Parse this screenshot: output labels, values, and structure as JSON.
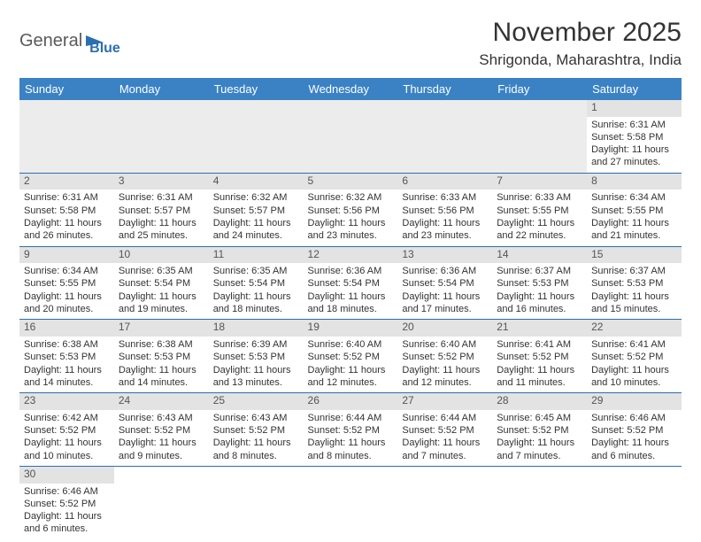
{
  "logo": {
    "part1": "General",
    "part2": "Blue"
  },
  "title": "November 2025",
  "location": "Shrigonda, Maharashtra, India",
  "colors": {
    "header_bg": "#3b82c4",
    "header_text": "#ffffff",
    "row_divider": "#2b6fb0",
    "daynum_bg": "#e3e3e3",
    "text": "#333333",
    "logo_blue": "#2b6fb0"
  },
  "weekdays": [
    "Sunday",
    "Monday",
    "Tuesday",
    "Wednesday",
    "Thursday",
    "Friday",
    "Saturday"
  ],
  "weeks": [
    [
      null,
      null,
      null,
      null,
      null,
      null,
      {
        "n": "1",
        "sr": "Sunrise: 6:31 AM",
        "ss": "Sunset: 5:58 PM",
        "dl": "Daylight: 11 hours and 27 minutes."
      }
    ],
    [
      {
        "n": "2",
        "sr": "Sunrise: 6:31 AM",
        "ss": "Sunset: 5:58 PM",
        "dl": "Daylight: 11 hours and 26 minutes."
      },
      {
        "n": "3",
        "sr": "Sunrise: 6:31 AM",
        "ss": "Sunset: 5:57 PM",
        "dl": "Daylight: 11 hours and 25 minutes."
      },
      {
        "n": "4",
        "sr": "Sunrise: 6:32 AM",
        "ss": "Sunset: 5:57 PM",
        "dl": "Daylight: 11 hours and 24 minutes."
      },
      {
        "n": "5",
        "sr": "Sunrise: 6:32 AM",
        "ss": "Sunset: 5:56 PM",
        "dl": "Daylight: 11 hours and 23 minutes."
      },
      {
        "n": "6",
        "sr": "Sunrise: 6:33 AM",
        "ss": "Sunset: 5:56 PM",
        "dl": "Daylight: 11 hours and 23 minutes."
      },
      {
        "n": "7",
        "sr": "Sunrise: 6:33 AM",
        "ss": "Sunset: 5:55 PM",
        "dl": "Daylight: 11 hours and 22 minutes."
      },
      {
        "n": "8",
        "sr": "Sunrise: 6:34 AM",
        "ss": "Sunset: 5:55 PM",
        "dl": "Daylight: 11 hours and 21 minutes."
      }
    ],
    [
      {
        "n": "9",
        "sr": "Sunrise: 6:34 AM",
        "ss": "Sunset: 5:55 PM",
        "dl": "Daylight: 11 hours and 20 minutes."
      },
      {
        "n": "10",
        "sr": "Sunrise: 6:35 AM",
        "ss": "Sunset: 5:54 PM",
        "dl": "Daylight: 11 hours and 19 minutes."
      },
      {
        "n": "11",
        "sr": "Sunrise: 6:35 AM",
        "ss": "Sunset: 5:54 PM",
        "dl": "Daylight: 11 hours and 18 minutes."
      },
      {
        "n": "12",
        "sr": "Sunrise: 6:36 AM",
        "ss": "Sunset: 5:54 PM",
        "dl": "Daylight: 11 hours and 18 minutes."
      },
      {
        "n": "13",
        "sr": "Sunrise: 6:36 AM",
        "ss": "Sunset: 5:54 PM",
        "dl": "Daylight: 11 hours and 17 minutes."
      },
      {
        "n": "14",
        "sr": "Sunrise: 6:37 AM",
        "ss": "Sunset: 5:53 PM",
        "dl": "Daylight: 11 hours and 16 minutes."
      },
      {
        "n": "15",
        "sr": "Sunrise: 6:37 AM",
        "ss": "Sunset: 5:53 PM",
        "dl": "Daylight: 11 hours and 15 minutes."
      }
    ],
    [
      {
        "n": "16",
        "sr": "Sunrise: 6:38 AM",
        "ss": "Sunset: 5:53 PM",
        "dl": "Daylight: 11 hours and 14 minutes."
      },
      {
        "n": "17",
        "sr": "Sunrise: 6:38 AM",
        "ss": "Sunset: 5:53 PM",
        "dl": "Daylight: 11 hours and 14 minutes."
      },
      {
        "n": "18",
        "sr": "Sunrise: 6:39 AM",
        "ss": "Sunset: 5:53 PM",
        "dl": "Daylight: 11 hours and 13 minutes."
      },
      {
        "n": "19",
        "sr": "Sunrise: 6:40 AM",
        "ss": "Sunset: 5:52 PM",
        "dl": "Daylight: 11 hours and 12 minutes."
      },
      {
        "n": "20",
        "sr": "Sunrise: 6:40 AM",
        "ss": "Sunset: 5:52 PM",
        "dl": "Daylight: 11 hours and 12 minutes."
      },
      {
        "n": "21",
        "sr": "Sunrise: 6:41 AM",
        "ss": "Sunset: 5:52 PM",
        "dl": "Daylight: 11 hours and 11 minutes."
      },
      {
        "n": "22",
        "sr": "Sunrise: 6:41 AM",
        "ss": "Sunset: 5:52 PM",
        "dl": "Daylight: 11 hours and 10 minutes."
      }
    ],
    [
      {
        "n": "23",
        "sr": "Sunrise: 6:42 AM",
        "ss": "Sunset: 5:52 PM",
        "dl": "Daylight: 11 hours and 10 minutes."
      },
      {
        "n": "24",
        "sr": "Sunrise: 6:43 AM",
        "ss": "Sunset: 5:52 PM",
        "dl": "Daylight: 11 hours and 9 minutes."
      },
      {
        "n": "25",
        "sr": "Sunrise: 6:43 AM",
        "ss": "Sunset: 5:52 PM",
        "dl": "Daylight: 11 hours and 8 minutes."
      },
      {
        "n": "26",
        "sr": "Sunrise: 6:44 AM",
        "ss": "Sunset: 5:52 PM",
        "dl": "Daylight: 11 hours and 8 minutes."
      },
      {
        "n": "27",
        "sr": "Sunrise: 6:44 AM",
        "ss": "Sunset: 5:52 PM",
        "dl": "Daylight: 11 hours and 7 minutes."
      },
      {
        "n": "28",
        "sr": "Sunrise: 6:45 AM",
        "ss": "Sunset: 5:52 PM",
        "dl": "Daylight: 11 hours and 7 minutes."
      },
      {
        "n": "29",
        "sr": "Sunrise: 6:46 AM",
        "ss": "Sunset: 5:52 PM",
        "dl": "Daylight: 11 hours and 6 minutes."
      }
    ],
    [
      {
        "n": "30",
        "sr": "Sunrise: 6:46 AM",
        "ss": "Sunset: 5:52 PM",
        "dl": "Daylight: 11 hours and 6 minutes."
      },
      null,
      null,
      null,
      null,
      null,
      null
    ]
  ]
}
